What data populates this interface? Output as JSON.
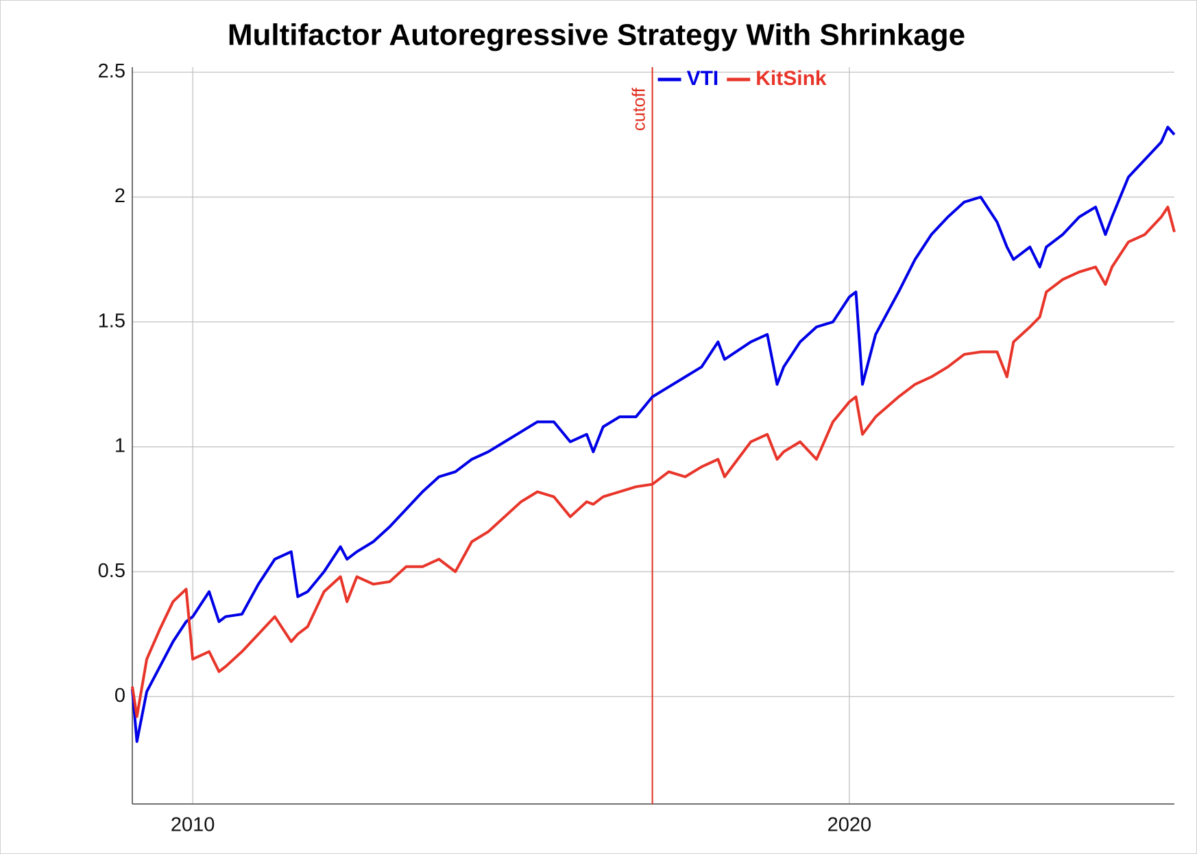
{
  "chart_data": {
    "type": "line",
    "title": "Multifactor Autoregressive Strategy With Shrinkage",
    "x": [
      2009.08,
      2009.15,
      2009.3,
      2009.5,
      2009.7,
      2009.9,
      2010,
      2010.25,
      2010.4,
      2010.5,
      2010.75,
      2011,
      2011.25,
      2011.5,
      2011.6,
      2011.75,
      2012,
      2012.25,
      2012.35,
      2012.5,
      2012.75,
      2013,
      2013.25,
      2013.5,
      2013.75,
      2014,
      2014.25,
      2014.5,
      2014.75,
      2015,
      2015.25,
      2015.5,
      2015.75,
      2016,
      2016.1,
      2016.25,
      2016.5,
      2016.75,
      2017,
      2017.25,
      2017.5,
      2017.75,
      2018,
      2018.1,
      2018.5,
      2018.75,
      2018.9,
      2019,
      2019.25,
      2019.5,
      2019.75,
      2020,
      2020.1,
      2020.2,
      2020.4,
      2020.75,
      2021,
      2021.25,
      2021.5,
      2021.75,
      2022,
      2022.25,
      2022.4,
      2022.5,
      2022.75,
      2022.9,
      2023,
      2023.25,
      2023.5,
      2023.75,
      2023.9,
      2024,
      2024.25,
      2024.5,
      2024.75,
      2024.85,
      2024.95
    ],
    "series": [
      {
        "name": "VTI",
        "color": "#0000e6",
        "values": [
          0.03,
          -0.18,
          0.02,
          0.12,
          0.22,
          0.3,
          0.32,
          0.42,
          0.3,
          0.32,
          0.33,
          0.45,
          0.55,
          0.58,
          0.4,
          0.42,
          0.5,
          0.6,
          0.55,
          0.58,
          0.62,
          0.68,
          0.75,
          0.82,
          0.88,
          0.9,
          0.95,
          0.98,
          1.02,
          1.06,
          1.1,
          1.1,
          1.02,
          1.05,
          0.98,
          1.08,
          1.12,
          1.12,
          1.2,
          1.24,
          1.28,
          1.32,
          1.42,
          1.35,
          1.42,
          1.45,
          1.25,
          1.32,
          1.42,
          1.48,
          1.5,
          1.6,
          1.62,
          1.25,
          1.45,
          1.62,
          1.75,
          1.85,
          1.92,
          1.98,
          2.0,
          1.9,
          1.8,
          1.75,
          1.8,
          1.72,
          1.8,
          1.85,
          1.92,
          1.96,
          1.85,
          1.92,
          2.08,
          2.15,
          2.22,
          2.28,
          2.25
        ]
      },
      {
        "name": "KitSink",
        "color": "#e8352a",
        "values": [
          0.04,
          -0.08,
          0.15,
          0.27,
          0.38,
          0.43,
          0.15,
          0.18,
          0.1,
          0.12,
          0.18,
          0.25,
          0.32,
          0.22,
          0.25,
          0.28,
          0.42,
          0.48,
          0.38,
          0.48,
          0.45,
          0.46,
          0.52,
          0.52,
          0.55,
          0.5,
          0.62,
          0.66,
          0.72,
          0.78,
          0.82,
          0.8,
          0.72,
          0.78,
          0.77,
          0.8,
          0.82,
          0.84,
          0.85,
          0.9,
          0.88,
          0.92,
          0.95,
          0.88,
          1.02,
          1.05,
          0.95,
          0.98,
          1.02,
          0.95,
          1.1,
          1.18,
          1.2,
          1.05,
          1.12,
          1.2,
          1.25,
          1.28,
          1.32,
          1.37,
          1.38,
          1.38,
          1.28,
          1.42,
          1.48,
          1.52,
          1.62,
          1.67,
          1.7,
          1.72,
          1.65,
          1.72,
          1.82,
          1.85,
          1.92,
          1.96,
          1.86
        ]
      }
    ],
    "xlim": [
      2009.08,
      2024.95
    ],
    "ylim": [
      -0.43,
      2.52
    ],
    "xticks": [
      2010,
      2020
    ],
    "yticks": [
      0,
      0.5,
      1,
      1.5,
      2,
      2.5
    ],
    "grid": true,
    "legend": "top",
    "annotations": [
      {
        "x": 2017,
        "text": "cutoff",
        "color": "#e03020"
      }
    ]
  }
}
